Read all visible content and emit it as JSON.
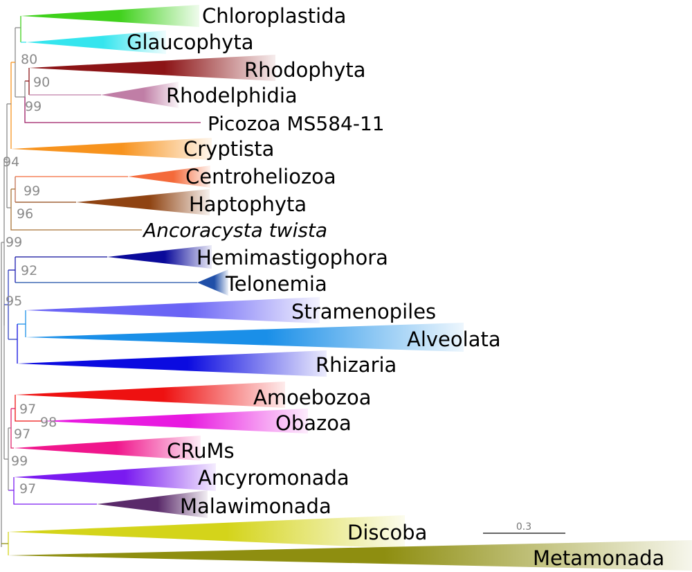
{
  "clades": [
    {
      "name": "Chloroplastida",
      "color": "#3fd11b"
    },
    {
      "name": "Glaucophyta",
      "color": "#35e5ee"
    },
    {
      "name": "Rhodophyta",
      "color": "#8c1416"
    },
    {
      "name": "Rhodelphidia",
      "color": "#c07ea6"
    },
    {
      "name": "Picozoa MS584-11",
      "color": "#9c1a63"
    },
    {
      "name": "Cryptista",
      "color": "#f7931e"
    },
    {
      "name": "Centroheliozoa",
      "color": "#f46a3a"
    },
    {
      "name": "Haptophyta",
      "color": "#8f4312"
    },
    {
      "name": "Ancoracysta twista",
      "color": "#a87235"
    },
    {
      "name": "Hemimastigophora",
      "color": "#0a0a9a"
    },
    {
      "name": "Telonemia",
      "color": "#1f4fa8"
    },
    {
      "name": "Stramenopiles",
      "color": "#6a64f5"
    },
    {
      "name": "Alveolata",
      "color": "#1a8fe8"
    },
    {
      "name": "Rhizaria",
      "color": "#0b0be0"
    },
    {
      "name": "Amoebozoa",
      "color": "#ee1111"
    },
    {
      "name": "Obazoa",
      "color": "#e81ae0"
    },
    {
      "name": "CRuMs",
      "color": "#f0168c"
    },
    {
      "name": "Ancyromonada",
      "color": "#7a1af0"
    },
    {
      "name": "Malawimonada",
      "color": "#5a2a6a"
    },
    {
      "name": "Discoba",
      "color": "#d4d41a"
    },
    {
      "name": "Metamonada",
      "color": "#8e8e10"
    }
  ],
  "support_values": [
    "80",
    "90",
    "99",
    "94",
    "99",
    "96",
    "99",
    "92",
    "95",
    "97",
    "98",
    "97",
    "99",
    "97"
  ],
  "scale_bar": {
    "label": "0.3"
  }
}
